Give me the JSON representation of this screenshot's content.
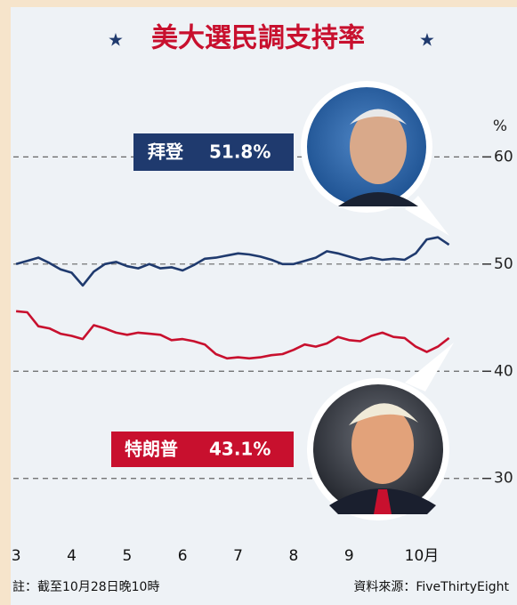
{
  "chart_data": {
    "type": "line",
    "title": "美大選民調支持率",
    "y_label": "%",
    "x": [
      3.0,
      3.2,
      3.4,
      3.6,
      3.8,
      4.0,
      4.2,
      4.4,
      4.6,
      4.8,
      5.0,
      5.2,
      5.4,
      5.6,
      5.8,
      6.0,
      6.2,
      6.4,
      6.6,
      6.8,
      7.0,
      7.2,
      7.4,
      7.6,
      7.8,
      8.0,
      8.2,
      8.4,
      8.6,
      8.8,
      9.0,
      9.2,
      9.4,
      9.6,
      9.8,
      10.0,
      10.2,
      10.4,
      10.6,
      10.8
    ],
    "series": [
      {
        "name": "拜登",
        "label": "51.8%",
        "color": "#1f3a6e",
        "values": [
          50.0,
          50.3,
          50.6,
          50.1,
          49.5,
          49.2,
          48.0,
          49.3,
          50.0,
          50.2,
          49.8,
          49.6,
          50.0,
          49.6,
          49.7,
          49.4,
          49.9,
          50.5,
          50.6,
          50.8,
          51.0,
          50.9,
          50.7,
          50.4,
          50.0,
          50.0,
          50.3,
          50.6,
          51.2,
          51.0,
          50.7,
          50.4,
          50.6,
          50.4,
          50.5,
          50.4,
          51.0,
          52.3,
          52.5,
          51.8
        ]
      },
      {
        "name": "特朗普",
        "label": "43.1%",
        "color": "#c8102e",
        "values": [
          45.6,
          45.5,
          44.2,
          44.0,
          43.5,
          43.3,
          43.0,
          44.3,
          44.0,
          43.6,
          43.4,
          43.6,
          43.5,
          43.4,
          42.9,
          43.0,
          42.8,
          42.5,
          41.6,
          41.2,
          41.3,
          41.2,
          41.3,
          41.5,
          41.6,
          42.0,
          42.5,
          42.3,
          42.6,
          43.2,
          42.9,
          42.8,
          43.3,
          43.6,
          43.2,
          43.1,
          42.3,
          41.8,
          42.3,
          43.1
        ]
      }
    ],
    "xlim": [
      2.95,
      11.4
    ],
    "xticks": [
      3,
      4,
      5,
      6,
      7,
      8,
      9,
      {
        "value": 10,
        "label": "10月"
      }
    ],
    "ylim": [
      24,
      68
    ],
    "yticks": [
      30,
      40,
      50,
      60
    ],
    "grid": true,
    "footnote": "註：截至10月28日晚10時",
    "source": "資料來源：FiveThirtyEight"
  }
}
